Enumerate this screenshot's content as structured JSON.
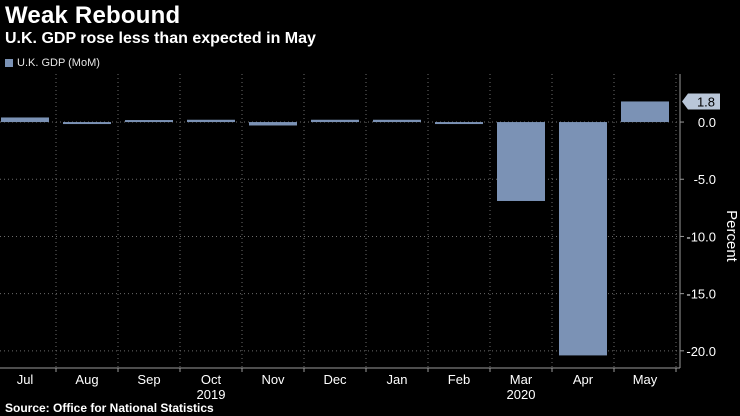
{
  "title": "Weak Rebound",
  "subtitle": "U.K. GDP rose less than expected in May",
  "legend_label": "U.K. GDP (MoM)",
  "source": "Source: Office for National Statistics",
  "colors": {
    "bar": "#7b92b5",
    "background": "#000000",
    "grid": "#6b6b6b",
    "text": "#ffffff"
  },
  "chart_data": {
    "type": "bar",
    "title": "Weak Rebound",
    "subtitle": "U.K. GDP rose less than expected in May",
    "categories": [
      "Jul",
      "Aug",
      "Sep",
      "Oct",
      "Nov",
      "Dec",
      "Jan",
      "Feb",
      "Mar",
      "Apr",
      "May"
    ],
    "year_labels": [
      {
        "label": "2019",
        "category": "Oct"
      },
      {
        "label": "2020",
        "category": "Mar"
      }
    ],
    "series": [
      {
        "name": "U.K. GDP (MoM)",
        "values": [
          0.4,
          -0.1,
          0.0,
          0.2,
          -0.3,
          0.2,
          0.2,
          -0.1,
          -6.9,
          -20.4,
          1.8
        ]
      }
    ],
    "ylabel": "Percent",
    "ylim": [
      -21.5,
      4.2
    ],
    "yticks": [
      0.0,
      -5.0,
      -10.0,
      -15.0,
      -20.0
    ],
    "ytick_labels": [
      "0.0",
      "-5.0",
      "-10.0",
      "-15.0",
      "-20.0"
    ],
    "last_value_label": "1.8",
    "grid": true
  }
}
